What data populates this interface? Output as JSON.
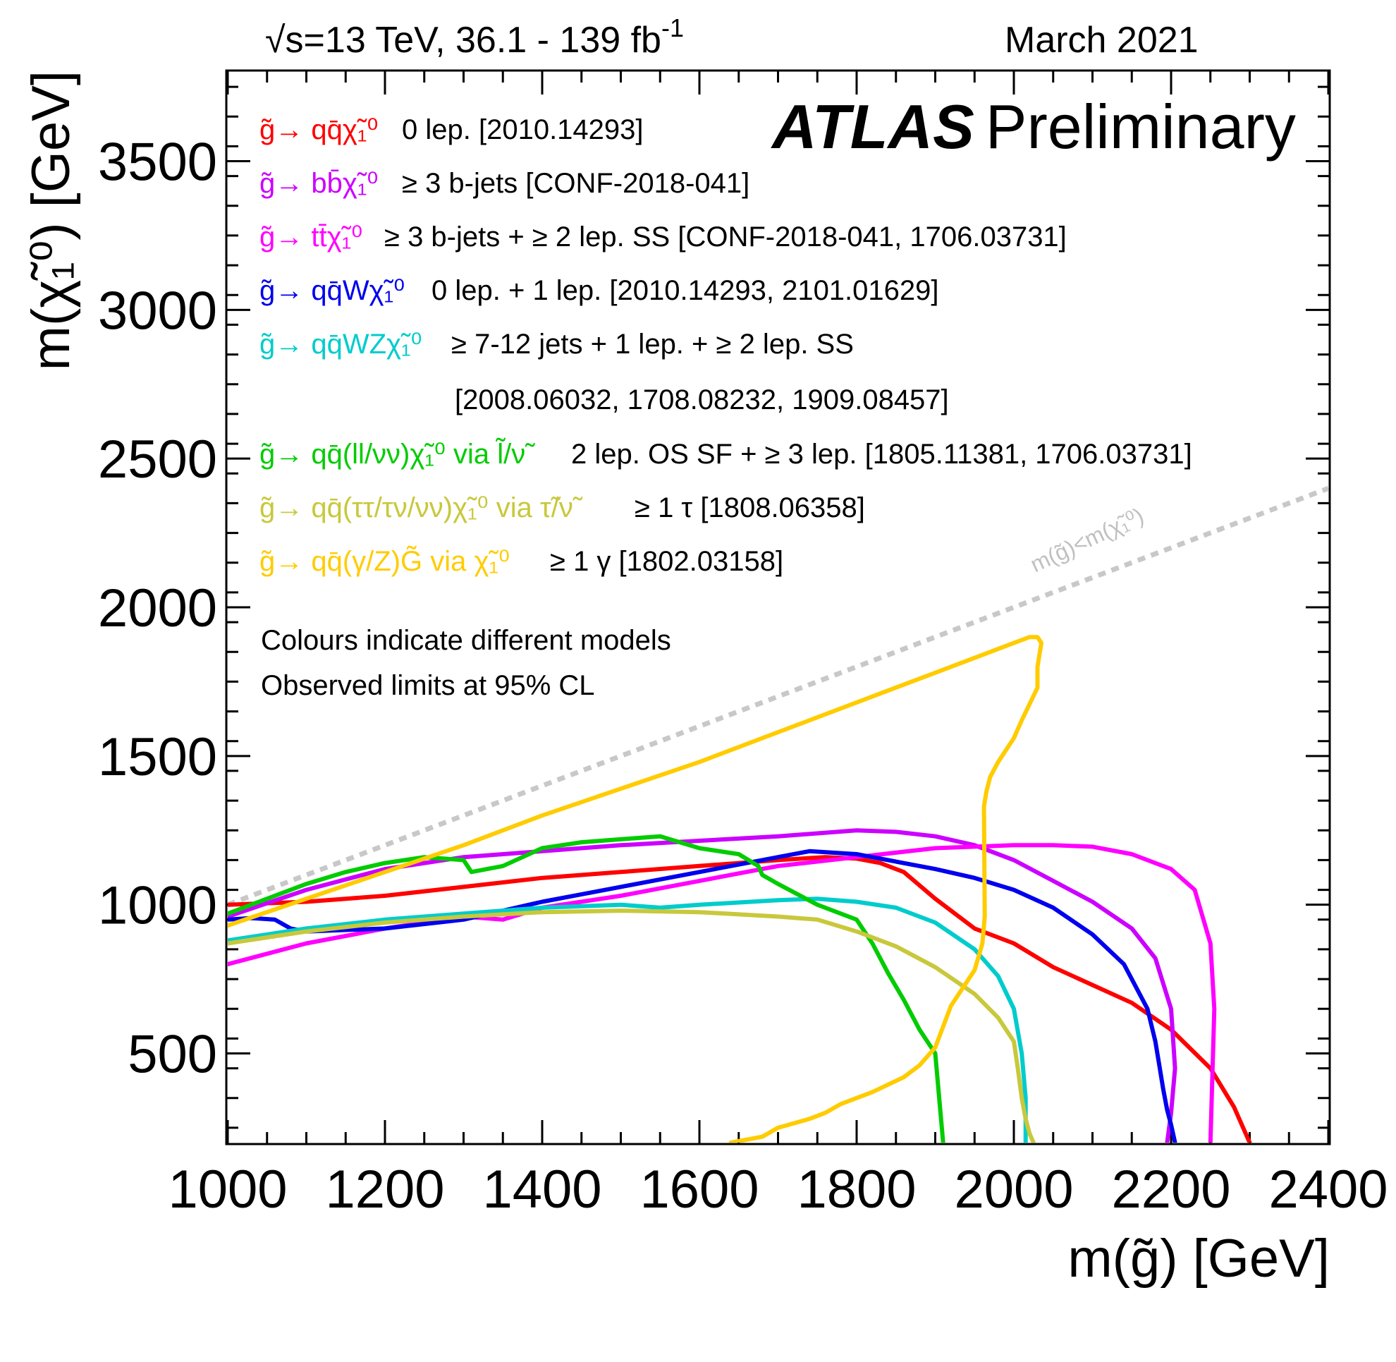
{
  "header": {
    "energy_label": "√s=13 TeV, 36.1 - 139 fb",
    "energy_superscript": "-1",
    "date": "March 2021",
    "atlas_bold": "ATLAS",
    "atlas_rest": "Preliminary"
  },
  "notes": [
    "Colours indicate different models",
    "Observed limits at 95% CL"
  ],
  "diagonal_label": "m(g̃)<m(χ̃₁⁰)",
  "legend": [
    {
      "process": "g̃→ qq̄χ̃₁⁰",
      "desc": "0 lep. [2010.14293]",
      "color": "#ff0000"
    },
    {
      "process": "g̃→ bb̄χ̃₁⁰",
      "desc": "≥ 3 b-jets [CONF-2018-041]",
      "color": "#cc00ff"
    },
    {
      "process": "g̃→ tt̄χ̃₁⁰",
      "desc": "≥ 3 b-jets +  ≥ 2 lep. SS [CONF-2018-041, 1706.03731]",
      "color": "#ff00ff"
    },
    {
      "process": "g̃→ qq̄Wχ̃₁⁰",
      "desc": "0 lep. + 1 lep. [2010.14293, 2101.01629]",
      "color": "#0000ee"
    },
    {
      "process": "g̃→ qq̄WZχ̃₁⁰",
      "desc": "≥ 7-12 jets + 1 lep. +  ≥ 2 lep. SS",
      "desc2": "[2008.06032, 1708.08232, 1909.08457]",
      "color": "#00cccc"
    },
    {
      "process": "g̃→ qq̄(ll/νν)χ̃₁⁰ via l̃/ν̃",
      "desc": "2 lep. OS SF +  ≥ 3 lep. [1805.11381, 1706.03731]",
      "color": "#00cc00"
    },
    {
      "process": "g̃→ qq̄(ττ/τν/νν)χ̃₁⁰ via τ̃/ν̃",
      "desc": "≥ 1 τ [1808.06358]",
      "color": "#c8c83c"
    },
    {
      "process": "g̃→ qq̄(γ/Z)G̃ via χ̃₁⁰",
      "desc": "≥ 1 γ [1802.03158]",
      "color": "#ffcc00"
    }
  ],
  "chart_data": {
    "type": "line",
    "title": "",
    "xlabel": "m(g̃) [GeV]",
    "ylabel": "m(χ̃₁⁰) [GeV]",
    "xlim": [
      1000,
      2400
    ],
    "ylim": [
      200,
      3800
    ],
    "x_ticks": [
      1000,
      1200,
      1400,
      1600,
      1800,
      2000,
      2200,
      2400
    ],
    "x_tick_labels": [
      "1000",
      "1200",
      "1400",
      "1600",
      "1800",
      "2000",
      "2200",
      "2400"
    ],
    "y_ticks": [
      500,
      1000,
      1500,
      2000,
      2500,
      3000,
      3500
    ],
    "y_tick_labels": [
      "500",
      "1000",
      "1500",
      "2000",
      "2500",
      "3000",
      "3500"
    ],
    "grid": false,
    "legend_position": "top-left",
    "diagonal": {
      "color": "#c8c8c8",
      "points": [
        [
          1000,
          1000
        ],
        [
          2400,
          2400
        ]
      ]
    },
    "series": [
      {
        "color": "#ff0000",
        "x": [
          1000,
          1100,
          1200,
          1300,
          1400,
          1500,
          1600,
          1700,
          1760,
          1800,
          1830,
          1860,
          1900,
          1950,
          2000,
          2050,
          2100,
          2150,
          2200,
          2250,
          2280,
          2300
        ],
        "y": [
          1000,
          1010,
          1030,
          1060,
          1090,
          1110,
          1130,
          1150,
          1160,
          1155,
          1140,
          1110,
          1020,
          920,
          870,
          790,
          730,
          670,
          580,
          450,
          320,
          200
        ]
      },
      {
        "color": "#cc00ff",
        "x": [
          1000,
          1100,
          1200,
          1300,
          1400,
          1500,
          1600,
          1700,
          1800,
          1850,
          1900,
          1950,
          2000,
          2050,
          2100,
          2150,
          2180,
          2200,
          2205,
          2200,
          2195
        ],
        "y": [
          960,
          1050,
          1120,
          1160,
          1180,
          1200,
          1215,
          1230,
          1250,
          1245,
          1230,
          1200,
          1150,
          1080,
          1010,
          920,
          820,
          650,
          450,
          300,
          200
        ]
      },
      {
        "color": "#ff00ff",
        "x": [
          1000,
          1100,
          1200,
          1300,
          1350,
          1400,
          1500,
          1600,
          1700,
          1800,
          1900,
          1950,
          2000,
          2050,
          2100,
          2150,
          2200,
          2230,
          2250,
          2255,
          2250
        ],
        "y": [
          800,
          870,
          920,
          960,
          950,
          990,
          1030,
          1080,
          1130,
          1160,
          1190,
          1195,
          1200,
          1200,
          1195,
          1170,
          1120,
          1050,
          870,
          650,
          200
        ]
      },
      {
        "color": "#0000ee",
        "x": [
          1000,
          1030,
          1060,
          1080,
          1100,
          1200,
          1300,
          1400,
          1500,
          1600,
          1700,
          1740,
          1800,
          1900,
          1950,
          2000,
          2050,
          2100,
          2140,
          2170,
          2180,
          2185,
          2190,
          2195,
          2200,
          2205
        ],
        "y": [
          950,
          955,
          950,
          920,
          910,
          920,
          950,
          1010,
          1060,
          1110,
          1160,
          1180,
          1170,
          1120,
          1090,
          1050,
          990,
          900,
          800,
          650,
          540,
          460,
          380,
          310,
          260,
          200
        ]
      },
      {
        "color": "#00cccc",
        "x": [
          1000,
          1100,
          1200,
          1300,
          1400,
          1500,
          1550,
          1600,
          1700,
          1750,
          1800,
          1850,
          1900,
          1950,
          1980,
          2000,
          2010,
          2015,
          2015
        ],
        "y": [
          880,
          920,
          950,
          970,
          990,
          1000,
          990,
          1000,
          1015,
          1020,
          1010,
          990,
          940,
          850,
          760,
          650,
          500,
          350,
          200
        ]
      },
      {
        "color": "#00cc00",
        "x": [
          1000,
          1050,
          1100,
          1150,
          1200,
          1250,
          1300,
          1305,
          1310,
          1350,
          1400,
          1450,
          1500,
          1550,
          1600,
          1650,
          1675,
          1680,
          1700,
          1750,
          1800,
          1820,
          1840,
          1860,
          1880,
          1900,
          1905,
          1910
        ],
        "y": [
          970,
          1020,
          1070,
          1110,
          1140,
          1160,
          1150,
          1130,
          1110,
          1130,
          1190,
          1210,
          1220,
          1230,
          1190,
          1170,
          1130,
          1100,
          1070,
          1000,
          950,
          870,
          770,
          680,
          580,
          500,
          350,
          200
        ]
      },
      {
        "color": "#c8c83c",
        "x": [
          1000,
          1100,
          1200,
          1300,
          1400,
          1500,
          1600,
          1700,
          1750,
          1800,
          1850,
          1900,
          1950,
          1980,
          2000,
          2005,
          2010,
          2015,
          2020,
          2025
        ],
        "y": [
          870,
          910,
          940,
          960,
          975,
          980,
          975,
          960,
          950,
          910,
          860,
          790,
          700,
          620,
          540,
          450,
          350,
          280,
          230,
          200
        ]
      },
      {
        "color": "#ffcc00",
        "x": [
          1000,
          1100,
          1200,
          1300,
          1400,
          1500,
          1600,
          1700,
          1800,
          1900,
          2000,
          2020,
          2030,
          2035,
          2030,
          2030,
          2010,
          2000,
          1980,
          1970,
          1965,
          1962,
          1963,
          1960,
          1950,
          1920,
          1900,
          1880,
          1860,
          1820,
          1780,
          1760,
          1740,
          1700,
          1680,
          1640
        ],
        "y": [
          930,
          1020,
          1110,
          1200,
          1300,
          1390,
          1480,
          1580,
          1680,
          1780,
          1880,
          1900,
          1900,
          1880,
          1800,
          1730,
          1620,
          1560,
          1480,
          1430,
          1380,
          1330,
          960,
          870,
          780,
          660,
          520,
          460,
          420,
          370,
          330,
          300,
          280,
          250,
          220,
          200
        ]
      }
    ]
  }
}
